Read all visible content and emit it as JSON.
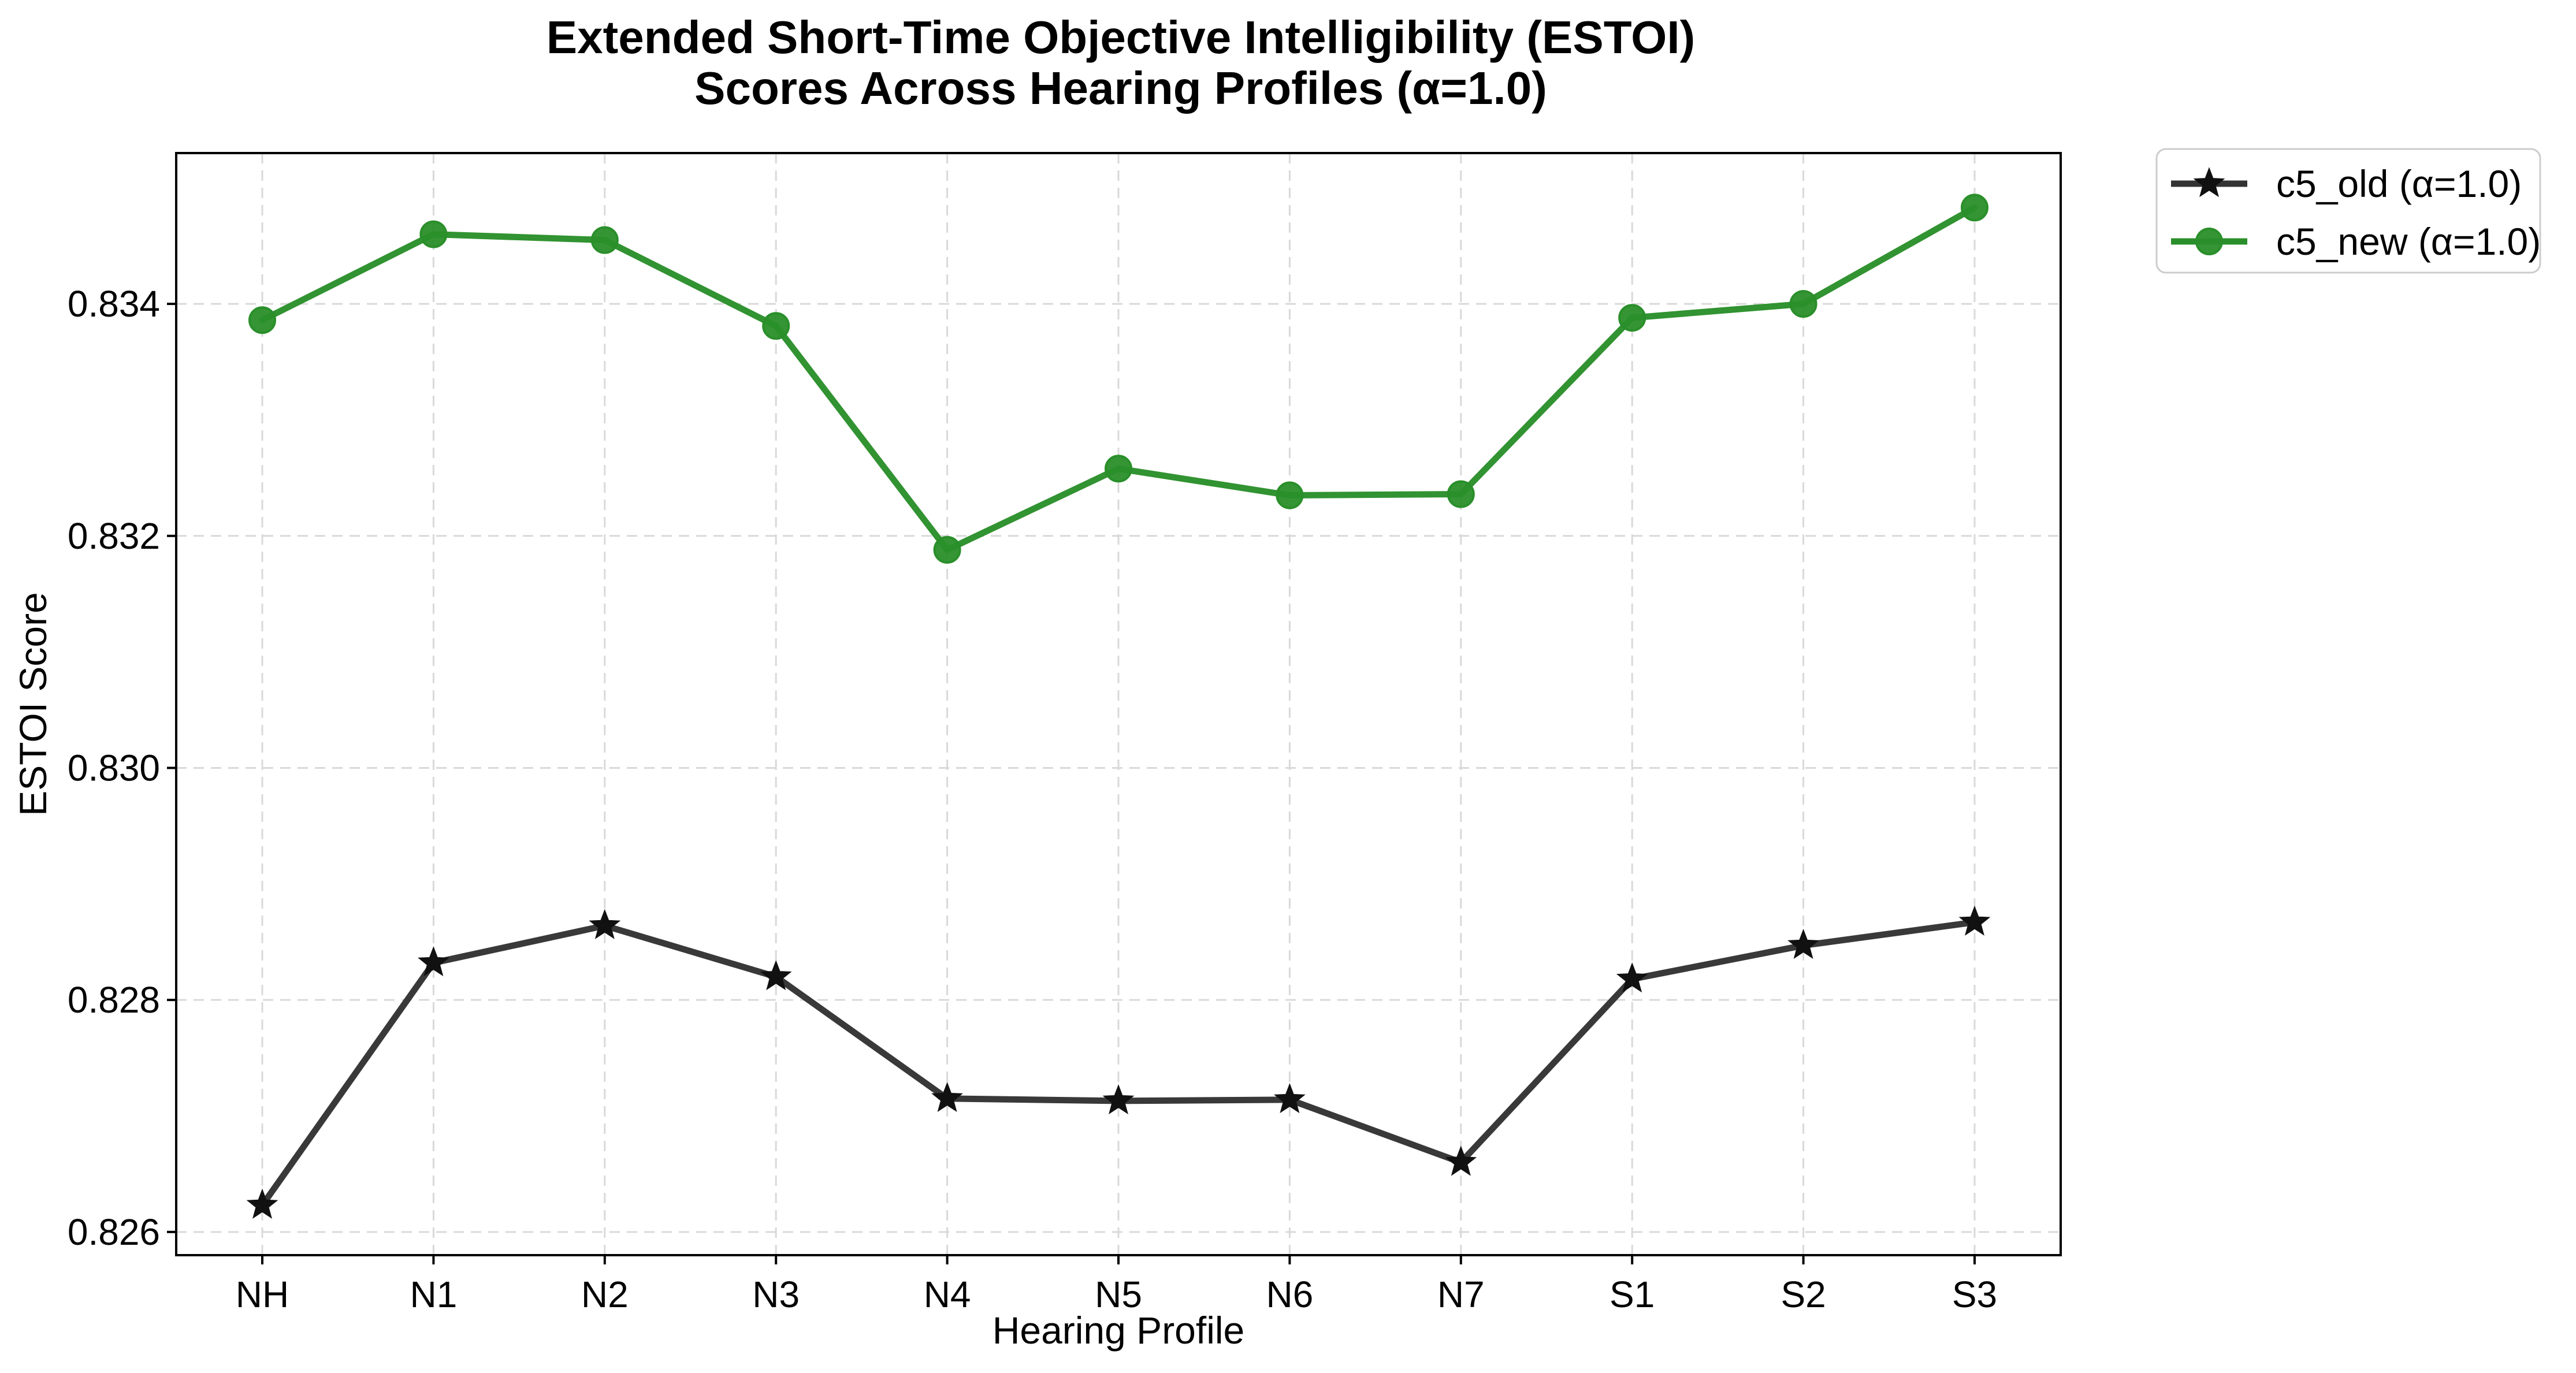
{
  "chart_data": {
    "type": "line",
    "title_line1": "Extended Short-Time Objective Intelligibility (ESTOI)",
    "title_line2": "Scores Across Hearing Profiles (α=1.0)",
    "xlabel": "Hearing Profile",
    "ylabel": "ESTOI Score",
    "categories": [
      "NH",
      "N1",
      "N2",
      "N3",
      "N4",
      "N5",
      "N6",
      "N7",
      "S1",
      "S2",
      "S3"
    ],
    "ylim": [
      0.8258,
      0.8353
    ],
    "yticks": [
      0.826,
      0.828,
      0.83,
      0.832,
      0.834
    ],
    "ytick_labels": [
      "0.826",
      "0.828",
      "0.830",
      "0.832",
      "0.834"
    ],
    "grid": true,
    "legend_position": "outside-top-right",
    "series": [
      {
        "name": "c5_old (α=1.0)",
        "color": "#333333",
        "marker": "star",
        "values": [
          0.82623,
          0.82832,
          0.82864,
          0.8282,
          0.82715,
          0.82713,
          0.82714,
          0.8266,
          0.82818,
          0.82847,
          0.82867
        ]
      },
      {
        "name": "c5_new (α=1.0)",
        "color": "#2a8f2a",
        "marker": "circle",
        "values": [
          0.83386,
          0.8346,
          0.83455,
          0.83381,
          0.83188,
          0.83258,
          0.83235,
          0.83236,
          0.83388,
          0.834,
          0.83483
        ]
      }
    ]
  }
}
